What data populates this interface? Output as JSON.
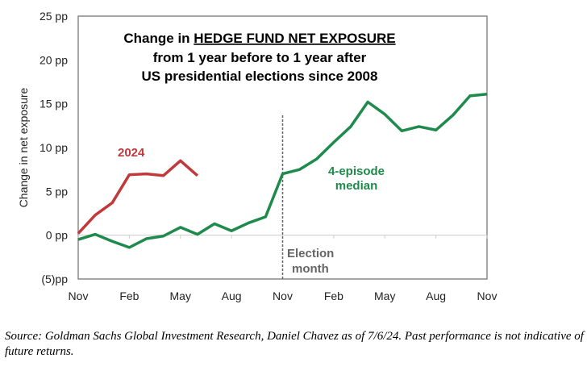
{
  "chart_data": {
    "type": "line",
    "title_lines": [
      "Change in ",
      "HEDGE FUND NET EXPOSURE",
      "from 1 year before to 1 year after",
      "US presidential elections since 2008"
    ],
    "ylabel": "Change in net exposure",
    "xlabel": "",
    "x_tick_labels": [
      "Nov",
      "Feb",
      "May",
      "Aug",
      "Nov",
      "Feb",
      "May",
      "Aug",
      "Nov"
    ],
    "x_tick_months": [
      0,
      3,
      6,
      9,
      12,
      15,
      18,
      21,
      24
    ],
    "xlim": [
      0,
      24
    ],
    "ylim": [
      -5,
      25
    ],
    "y_ticks": [
      {
        "value": 25,
        "label": "25 pp"
      },
      {
        "value": 20,
        "label": "20 pp"
      },
      {
        "value": 15,
        "label": "15 pp"
      },
      {
        "value": 10,
        "label": "10 pp"
      },
      {
        "value": 5,
        "label": "5 pp"
      },
      {
        "value": 0,
        "label": "0 pp"
      },
      {
        "value": -5,
        "label": "(5)pp"
      }
    ],
    "series": [
      {
        "name": "2024",
        "color": "#c0393b",
        "x": [
          0,
          1,
          2,
          3,
          4,
          5,
          6,
          7
        ],
        "values": [
          0.2,
          2.3,
          3.7,
          6.9,
          7.0,
          6.8,
          8.5,
          6.8
        ]
      },
      {
        "name": "4-episode median",
        "color": "#1e8a4c",
        "x": [
          0,
          1,
          2,
          3,
          4,
          5,
          6,
          7,
          8,
          9,
          10,
          11,
          12,
          13,
          14,
          15,
          16,
          17,
          18,
          19,
          20,
          21,
          22,
          23,
          24
        ],
        "values": [
          -0.5,
          0.1,
          -0.7,
          -1.4,
          -0.4,
          -0.1,
          0.9,
          0.1,
          1.3,
          0.5,
          1.4,
          2.1,
          7.0,
          7.5,
          8.7,
          10.6,
          12.4,
          15.2,
          13.8,
          11.9,
          12.4,
          12.0,
          13.7,
          15.9,
          16.1
        ]
      }
    ],
    "annotations": {
      "series_2024_label": "2024",
      "median_label_1": "4-episode",
      "median_label_2": "median",
      "election_label_1": "Election",
      "election_label_2": "month",
      "election_month": 12,
      "election_color": "#666666"
    }
  },
  "source": "Source: Goldman Sachs Global Investment Research, Daniel Chavez  as of 7/6/24. Past performance is not indicative of future returns."
}
